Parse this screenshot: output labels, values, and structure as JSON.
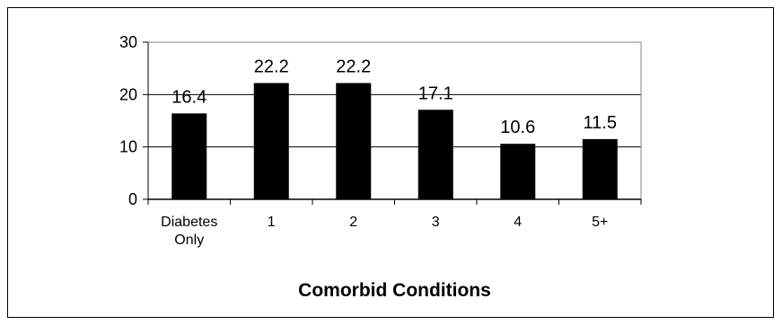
{
  "chart_data": {
    "type": "bar",
    "categories": [
      [
        "Diabetes",
        "Only"
      ],
      [
        "1"
      ],
      [
        "2"
      ],
      [
        "3"
      ],
      [
        "4"
      ],
      [
        "5+"
      ]
    ],
    "values": [
      16.4,
      22.2,
      22.2,
      17.1,
      10.6,
      11.5
    ],
    "data_labels": [
      "16.4",
      "22.2",
      "22.2",
      "17.1",
      "10.6",
      "11.5"
    ],
    "title": "",
    "xlabel": "Comorbid Conditions",
    "ylabel": "",
    "ylim": [
      0,
      30
    ],
    "yticks": [
      0,
      10,
      20,
      30
    ],
    "grid": true,
    "legend": "none",
    "bar_color": "#000000"
  }
}
